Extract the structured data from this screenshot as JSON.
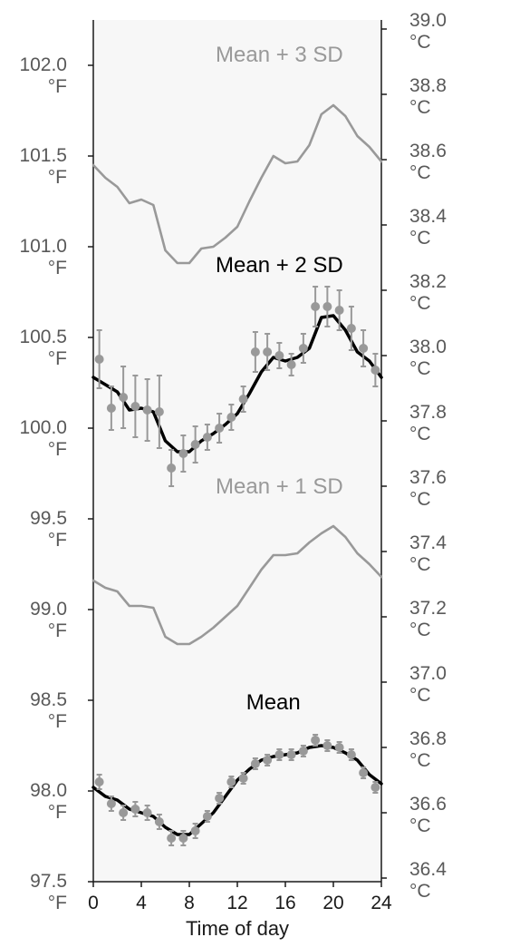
{
  "chart_data": {
    "type": "line",
    "title": "",
    "xlabel": "Time of day",
    "x_ticks": [
      0,
      4,
      8,
      12,
      16,
      20,
      24
    ],
    "xlim": [
      0,
      24
    ],
    "left_axis": {
      "unit": "°F",
      "ylim": [
        97.5,
        102.25
      ],
      "ticks": [
        "97.5",
        "98.0",
        "98.5",
        "99.0",
        "99.5",
        "100.0",
        "100.5",
        "101.0",
        "101.5",
        "102.0"
      ]
    },
    "right_axis": {
      "unit": "°C",
      "ticks": [
        "36.4",
        "36.6",
        "36.8",
        "37.0",
        "37.2",
        "37.4",
        "37.6",
        "37.8",
        "38.0",
        "38.2",
        "38.4",
        "38.6",
        "38.8",
        "39.0"
      ]
    },
    "grid": false,
    "series": [
      {
        "name": "Mean + 3 SD",
        "color": "#999999",
        "x": [
          0,
          1,
          2,
          3,
          4,
          5,
          6,
          7,
          8,
          9,
          10,
          11,
          12,
          13,
          14,
          15,
          16,
          17,
          18,
          19,
          20,
          21,
          22,
          23,
          24
        ],
        "values": [
          101.45,
          101.38,
          101.33,
          101.24,
          101.26,
          101.23,
          100.98,
          100.91,
          100.91,
          100.99,
          101.0,
          101.05,
          101.11,
          101.25,
          101.38,
          101.5,
          101.46,
          101.47,
          101.56,
          101.73,
          101.78,
          101.72,
          101.61,
          101.55,
          101.47
        ]
      },
      {
        "name": "Mean + 2 SD",
        "color": "#000000",
        "x": [
          0,
          1,
          2,
          3,
          4,
          5,
          6,
          7,
          8,
          9,
          10,
          11,
          12,
          13,
          14,
          15,
          16,
          17,
          18,
          19,
          20,
          21,
          22,
          23,
          24
        ],
        "values": [
          100.28,
          100.24,
          100.2,
          100.1,
          100.11,
          100.09,
          99.93,
          99.87,
          99.87,
          99.93,
          99.97,
          100.02,
          100.08,
          100.19,
          100.31,
          100.39,
          100.37,
          100.39,
          100.44,
          100.61,
          100.62,
          100.54,
          100.42,
          100.37,
          100.28
        ]
      },
      {
        "name": "Mean + 1 SD",
        "color": "#999999",
        "x": [
          0,
          1,
          2,
          3,
          4,
          5,
          6,
          7,
          8,
          9,
          10,
          11,
          12,
          13,
          14,
          15,
          16,
          17,
          18,
          19,
          20,
          21,
          22,
          23,
          24
        ],
        "values": [
          99.16,
          99.12,
          99.1,
          99.02,
          99.02,
          99.01,
          98.85,
          98.81,
          98.81,
          98.85,
          98.9,
          98.96,
          99.02,
          99.12,
          99.22,
          99.3,
          99.3,
          99.31,
          99.37,
          99.42,
          99.46,
          99.4,
          99.31,
          99.25,
          99.18
        ]
      },
      {
        "name": "Mean",
        "color": "#000000",
        "x": [
          0,
          1,
          2,
          3,
          4,
          5,
          6,
          7,
          8,
          9,
          10,
          11,
          12,
          13,
          14,
          15,
          16,
          17,
          18,
          19,
          20,
          21,
          22,
          23,
          24
        ],
        "values": [
          98.02,
          97.97,
          97.95,
          97.9,
          97.88,
          97.86,
          97.8,
          97.76,
          97.76,
          97.82,
          97.88,
          97.97,
          98.06,
          98.12,
          98.17,
          98.19,
          98.2,
          98.21,
          98.24,
          98.25,
          98.24,
          98.21,
          98.17,
          98.09,
          98.04
        ]
      }
    ],
    "error_points": [
      {
        "series": "Mean + 2 SD",
        "color": "#999999",
        "x": [
          0.5,
          1.5,
          2.5,
          3.5,
          4.5,
          5.5,
          6.5,
          7.5,
          8.5,
          9.5,
          10.5,
          11.5,
          12.5,
          13.5,
          14.5,
          15.5,
          16.5,
          17.5,
          18.5,
          19.5,
          20.5,
          21.5,
          22.5,
          23.5
        ],
        "values": [
          100.38,
          100.11,
          100.17,
          100.12,
          100.1,
          100.09,
          99.78,
          99.86,
          99.91,
          99.95,
          100.0,
          100.06,
          100.16,
          100.42,
          100.42,
          100.4,
          100.35,
          100.44,
          100.67,
          100.67,
          100.65,
          100.55,
          100.44,
          100.32
        ],
        "errors": [
          0.16,
          0.12,
          0.17,
          0.17,
          0.17,
          0.2,
          0.1,
          0.1,
          0.1,
          0.07,
          0.08,
          0.07,
          0.07,
          0.11,
          0.1,
          0.07,
          0.06,
          0.08,
          0.11,
          0.11,
          0.11,
          0.12,
          0.1,
          0.09
        ]
      },
      {
        "series": "Mean",
        "color": "#999999",
        "x": [
          0.5,
          1.5,
          2.5,
          3.5,
          4.5,
          5.5,
          6.5,
          7.5,
          8.5,
          9.5,
          10.5,
          11.5,
          12.5,
          13.5,
          14.5,
          15.5,
          16.5,
          17.5,
          18.5,
          19.5,
          20.5,
          21.5,
          22.5,
          23.5
        ],
        "values": [
          98.05,
          97.93,
          97.88,
          97.9,
          97.88,
          97.83,
          97.74,
          97.74,
          97.78,
          97.86,
          97.96,
          98.05,
          98.07,
          98.15,
          98.17,
          98.2,
          98.2,
          98.22,
          98.28,
          98.25,
          98.24,
          98.2,
          98.1,
          98.02
        ],
        "errors": [
          0.04,
          0.04,
          0.04,
          0.04,
          0.04,
          0.04,
          0.04,
          0.04,
          0.04,
          0.03,
          0.03,
          0.03,
          0.03,
          0.03,
          0.03,
          0.03,
          0.03,
          0.03,
          0.03,
          0.03,
          0.03,
          0.03,
          0.03,
          0.03
        ]
      }
    ],
    "annotations": [
      {
        "text": "Mean + 3 SD",
        "color": "#999999",
        "x": 15.5,
        "y": 102.02
      },
      {
        "text": "Mean + 2 SD",
        "color": "#000000",
        "x": 15.5,
        "y": 100.86
      },
      {
        "text": "Mean + 1 SD",
        "color": "#999999",
        "x": 15.5,
        "y": 99.64
      },
      {
        "text": "Mean",
        "color": "#000000",
        "x": 15.0,
        "y": 98.45
      }
    ]
  }
}
